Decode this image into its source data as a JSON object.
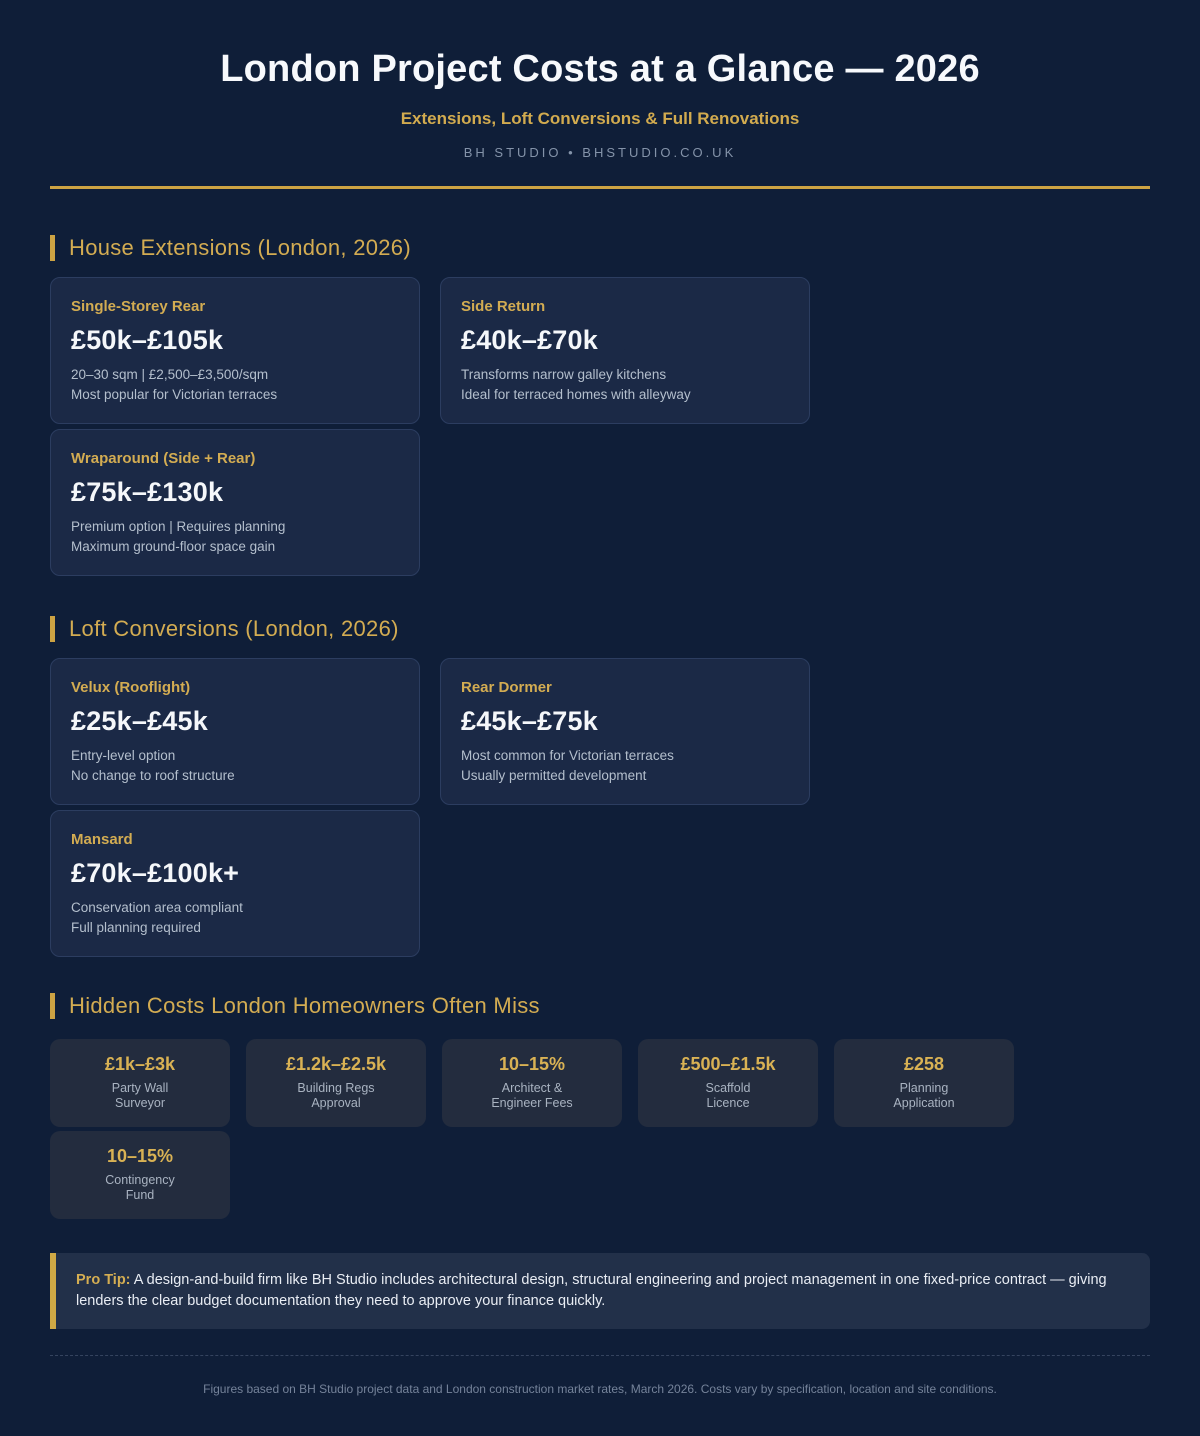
{
  "header": {
    "title": "London Project Costs at a Glance — 2026",
    "subtitle": "Extensions, Loft Conversions & Full Renovations",
    "byline": "BH STUDIO • BHSTUDIO.CO.UK"
  },
  "colors": {
    "background": "#0f1e38",
    "card_background": "#1b2946",
    "mini_card_background": "#232c3e",
    "accent_gold": "#d3ac52",
    "rule_gold": "#cda343",
    "price_white": "#f5f7fa",
    "detail_gray": "#b4bfcd"
  },
  "sections": {
    "extensions": {
      "title": "House Extensions (London, 2026)",
      "cards": [
        {
          "title": "Single-Storey Rear",
          "price": "£50k–£105k",
          "line1": "20–30 sqm | £2,500–£3,500/sqm",
          "line2": "Most popular for Victorian terraces"
        },
        {
          "title": "Side Return",
          "price": "£40k–£70k",
          "line1": "Transforms narrow galley kitchens",
          "line2": "Ideal for terraced homes with alleyway"
        },
        {
          "title": "Wraparound (Side + Rear)",
          "price": "£75k–£130k",
          "line1": "Premium option | Requires planning",
          "line2": "Maximum ground-floor space gain"
        }
      ]
    },
    "lofts": {
      "title": "Loft Conversions (London, 2026)",
      "cards": [
        {
          "title": "Velux (Rooflight)",
          "price": "£25k–£45k",
          "line1": "Entry-level option",
          "line2": "No change to roof structure"
        },
        {
          "title": "Rear Dormer",
          "price": "£45k–£75k",
          "line1": "Most common for Victorian terraces",
          "line2": "Usually permitted development"
        },
        {
          "title": "Mansard",
          "price": "£70k–£100k+",
          "line1": "Conservation area compliant",
          "line2": "Full planning required"
        }
      ]
    },
    "hidden": {
      "title": "Hidden Costs London Homeowners Often Miss",
      "items": [
        {
          "value": "£1k–£3k",
          "label1": "Party Wall",
          "label2": "Surveyor"
        },
        {
          "value": "£1.2k–£2.5k",
          "label1": "Building Regs",
          "label2": "Approval"
        },
        {
          "value": "10–15%",
          "label1": "Architect &",
          "label2": "Engineer Fees"
        },
        {
          "value": "£500–£1.5k",
          "label1": "Scaffold",
          "label2": "Licence"
        },
        {
          "value": "£258",
          "label1": "Planning",
          "label2": "Application"
        },
        {
          "value": "10–15%",
          "label1": "Contingency",
          "label2": "Fund"
        }
      ]
    }
  },
  "pro_tip": {
    "label": "Pro Tip:",
    "text": " A design-and-build firm like BH Studio includes architectural design, structural engineering and project management in one fixed-price contract — giving lenders the clear budget documentation they need to approve your finance quickly."
  },
  "footer": {
    "note": "Figures based on BH Studio project data and London construction market rates, March 2026. Costs vary by specification, location and site conditions."
  }
}
